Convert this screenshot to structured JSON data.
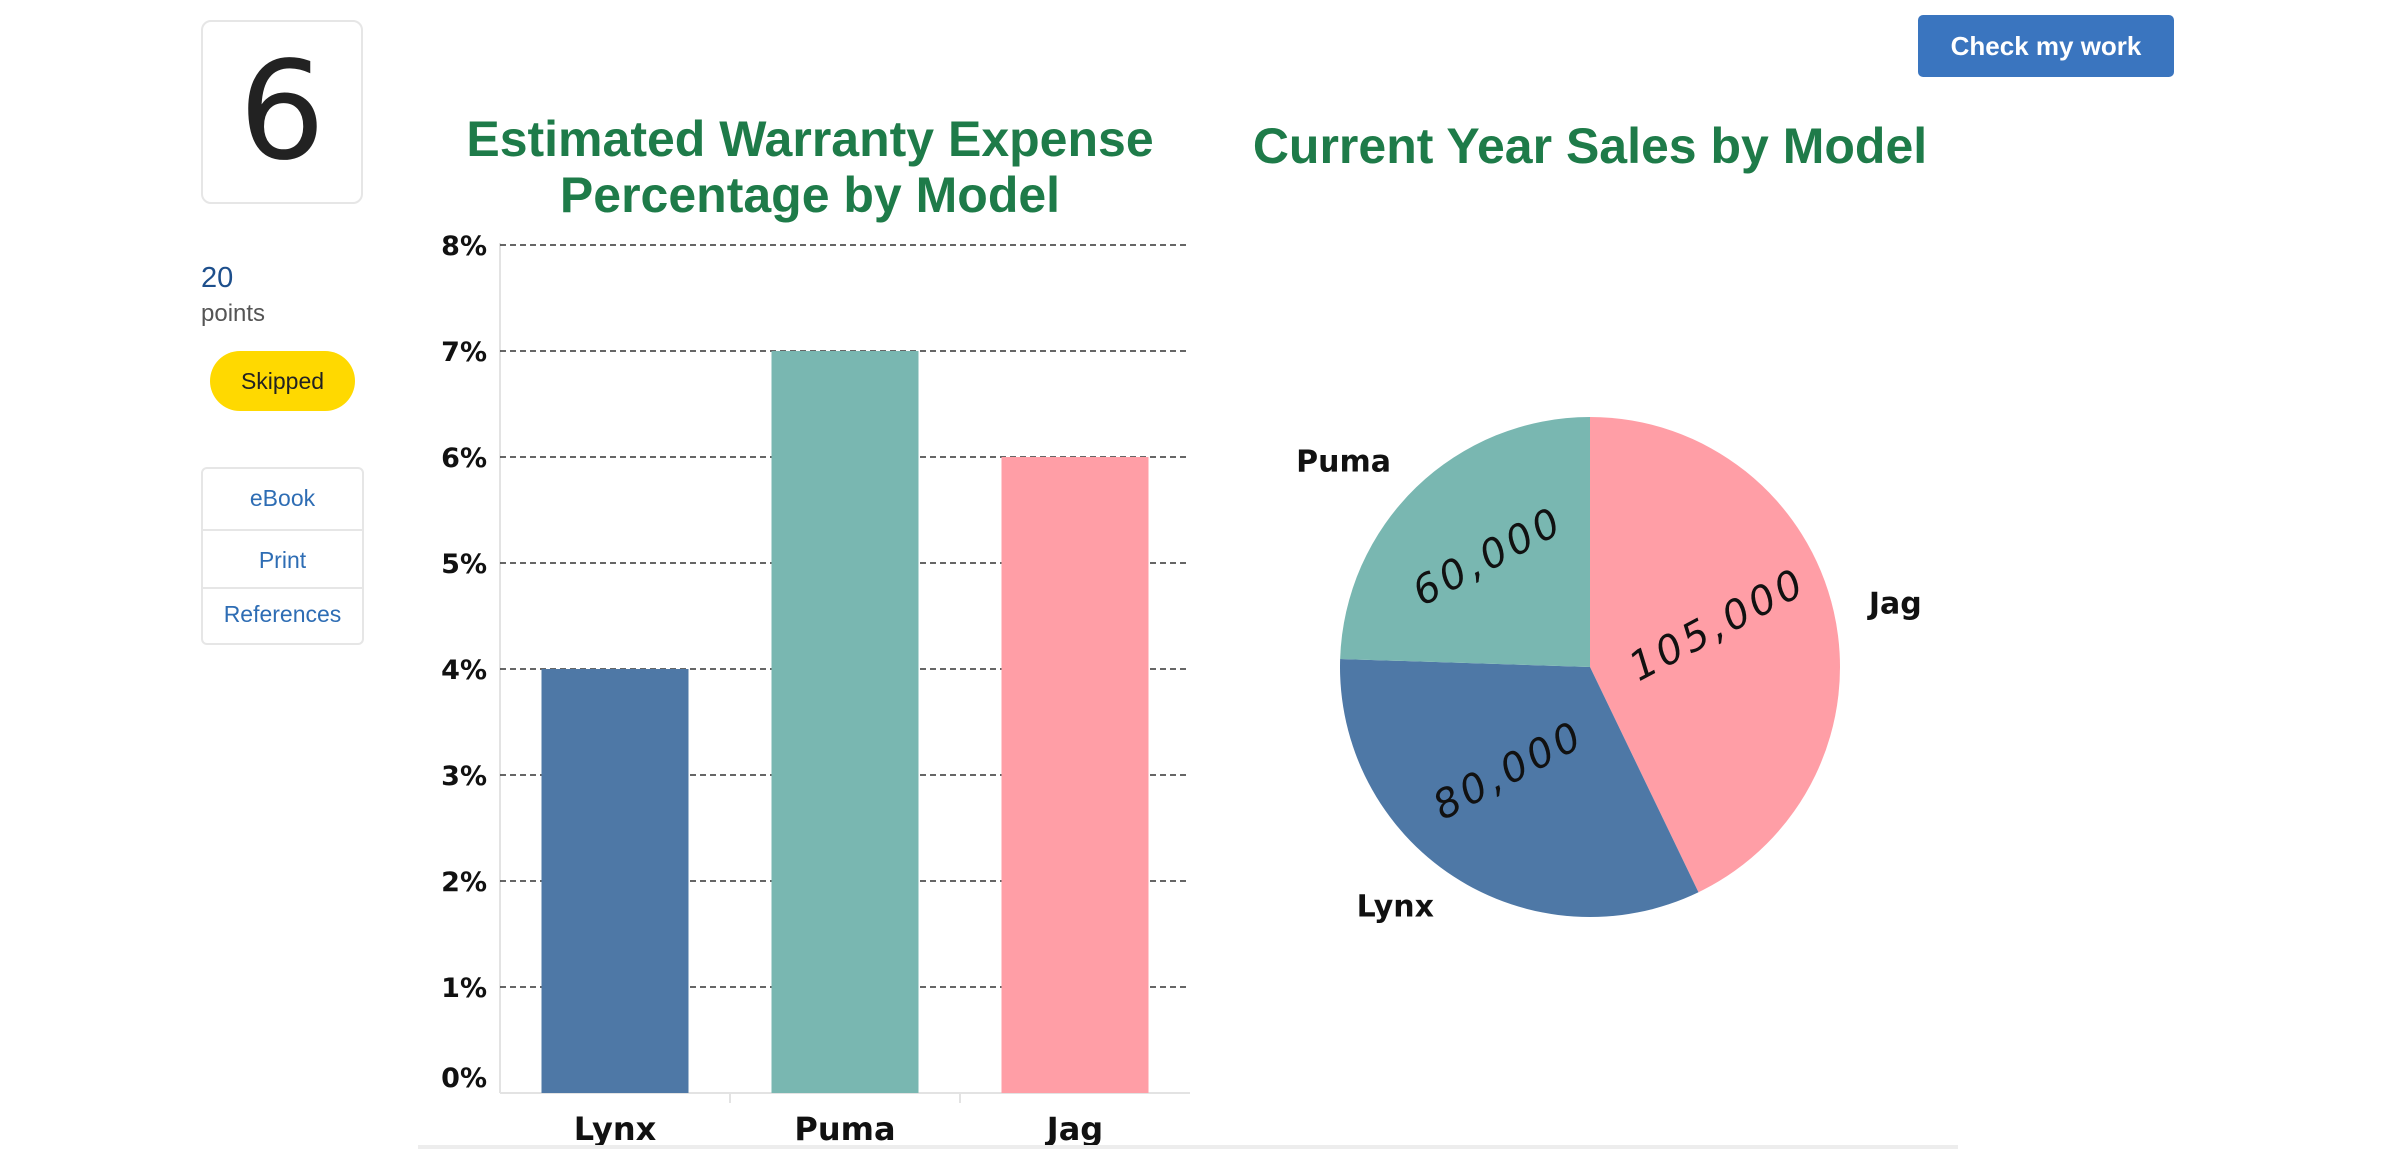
{
  "question": {
    "number": "6",
    "points": "20",
    "points_label": "points",
    "status": "Skipped"
  },
  "resources": {
    "items": [
      "eBook",
      "Print",
      "References"
    ]
  },
  "actions": {
    "check_label": "Check my work"
  },
  "colors": {
    "lynx": "#4e78a6",
    "puma": "#79b7b1",
    "jag": "#ff9ea6",
    "title": "#1e7b49",
    "button": "#3a75bf",
    "badge": "#ffd900"
  },
  "chart_data": [
    {
      "type": "bar",
      "title": "Estimated Warranty Expense Percentage by Model",
      "categories": [
        "Lynx",
        "Puma",
        "Jag"
      ],
      "values": [
        4,
        7,
        6
      ],
      "ylim": [
        0,
        8
      ],
      "yticks": [
        "0%",
        "1%",
        "2%",
        "3%",
        "4%",
        "5%",
        "6%",
        "7%",
        "8%"
      ],
      "xlabel": "",
      "ylabel": "",
      "grid": true
    },
    {
      "type": "pie",
      "title": "Current Year Sales by Model",
      "labels": [
        "Jag",
        "Lynx",
        "Puma"
      ],
      "values": [
        105000,
        80000,
        60000
      ],
      "annotations": [
        "105,000",
        "80,000",
        "60,000"
      ]
    }
  ]
}
